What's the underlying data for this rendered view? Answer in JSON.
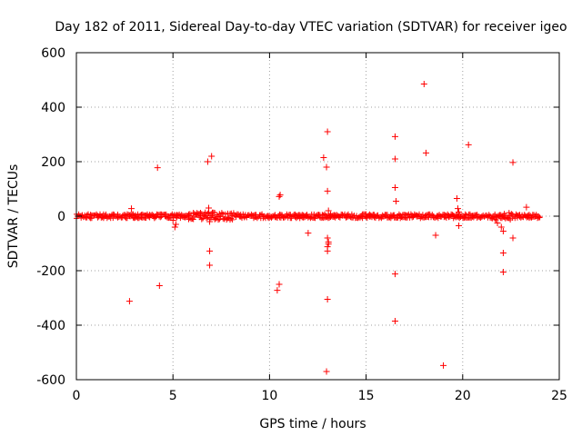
{
  "chart_data": {
    "type": "scatter",
    "title": "Day 182 of 2011, Sidereal Day-to-day VTEC variation (SDTVAR) for receiver igeo",
    "xlabel": "GPS time / hours",
    "ylabel": "SDTVAR / TECUs",
    "xlim": [
      0,
      25
    ],
    "ylim": [
      -600,
      600
    ],
    "xticks": [
      0,
      5,
      10,
      15,
      20,
      25
    ],
    "yticks": [
      -600,
      -400,
      -200,
      0,
      200,
      400,
      600
    ],
    "grid": true,
    "marker": "+",
    "color": "#ff0000",
    "dense_band": {
      "x_range": [
        0,
        24
      ],
      "y_range": [
        -8,
        8
      ],
      "description": "continuous band of points near zero"
    },
    "series": [
      {
        "name": "SDTVAR",
        "points": [
          [
            2.75,
            -312
          ],
          [
            2.85,
            28
          ],
          [
            3.0,
            -5
          ],
          [
            4.2,
            178
          ],
          [
            4.3,
            -255
          ],
          [
            5.0,
            -15
          ],
          [
            5.1,
            -40
          ],
          [
            5.15,
            -30
          ],
          [
            6.8,
            200
          ],
          [
            6.9,
            -128
          ],
          [
            6.9,
            -180
          ],
          [
            7.0,
            220
          ],
          [
            6.85,
            30
          ],
          [
            6.9,
            -20
          ],
          [
            10.4,
            -272
          ],
          [
            10.5,
            -250
          ],
          [
            10.5,
            72
          ],
          [
            10.55,
            78
          ],
          [
            12.0,
            -62
          ],
          [
            12.8,
            215
          ],
          [
            12.95,
            180
          ],
          [
            13.0,
            310
          ],
          [
            13.0,
            92
          ],
          [
            13.0,
            -80
          ],
          [
            13.05,
            -95
          ],
          [
            13.0,
            -112
          ],
          [
            13.0,
            -128
          ],
          [
            13.05,
            -102
          ],
          [
            13.0,
            -305
          ],
          [
            12.95,
            -570
          ],
          [
            13.05,
            20
          ],
          [
            16.5,
            292
          ],
          [
            16.5,
            210
          ],
          [
            16.5,
            105
          ],
          [
            16.55,
            55
          ],
          [
            16.5,
            -212
          ],
          [
            16.5,
            -385
          ],
          [
            18.0,
            485
          ],
          [
            18.1,
            232
          ],
          [
            18.6,
            -70
          ],
          [
            19.0,
            -548
          ],
          [
            19.7,
            65
          ],
          [
            19.75,
            28
          ],
          [
            19.8,
            -35
          ],
          [
            19.8,
            15
          ],
          [
            20.3,
            262
          ],
          [
            21.8,
            -25
          ],
          [
            22.0,
            -40
          ],
          [
            22.1,
            -55
          ],
          [
            22.1,
            -135
          ],
          [
            22.1,
            -205
          ],
          [
            22.6,
            197
          ],
          [
            22.6,
            -80
          ],
          [
            23.3,
            33
          ]
        ]
      }
    ]
  }
}
